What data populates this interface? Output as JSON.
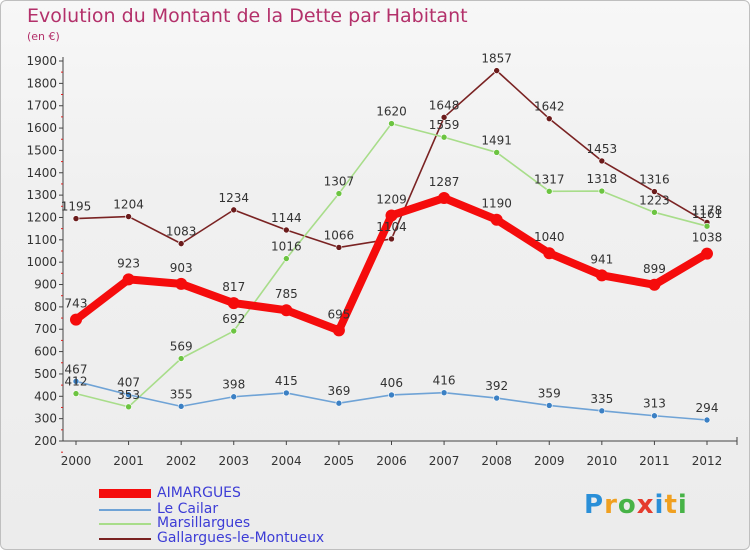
{
  "chart_data": {
    "type": "line",
    "title": "Evolution du Montant de la Dette par Habitant",
    "subtitle": "(en €)",
    "xlabel": "",
    "ylabel": "",
    "categories": [
      "2000",
      "2001",
      "2002",
      "2003",
      "2004",
      "2005",
      "2006",
      "2007",
      "2008",
      "2009",
      "2010",
      "2011",
      "2012"
    ],
    "ylim": [
      200,
      1900
    ],
    "yticks": [
      200,
      300,
      400,
      500,
      600,
      700,
      800,
      900,
      1000,
      1100,
      1200,
      1300,
      1400,
      1500,
      1600,
      1700,
      1800,
      1900
    ],
    "grid": false,
    "legend_position": "bottom-left",
    "series": [
      {
        "name": "Gallargues-le-Montueux",
        "color": "#7a2323",
        "marker": "#6b1b1b",
        "values": [
          1195,
          1204,
          1083,
          1234,
          1144,
          1066,
          1104,
          1648,
          1857,
          1642,
          1453,
          1316,
          1178
        ]
      },
      {
        "name": "Marsillargues",
        "color": "#a8dd8a",
        "marker": "#6cc441",
        "values": [
          412,
          353,
          569,
          692,
          1016,
          1307,
          1620,
          1559,
          1491,
          1317,
          1318,
          1223,
          1161
        ]
      },
      {
        "name": "Le Cailar",
        "color": "#6fa3d6",
        "marker": "#3b80c4",
        "values": [
          467,
          407,
          355,
          398,
          415,
          369,
          406,
          416,
          392,
          359,
          335,
          313,
          294
        ]
      },
      {
        "name": "AIMARGUES",
        "color": "#f50c0c",
        "marker": "#f50c0c",
        "values": [
          743,
          923,
          903,
          817,
          785,
          695,
          1209,
          1287,
          1190,
          1040,
          941,
          899,
          1038
        ]
      }
    ]
  },
  "legend": {
    "items": [
      {
        "label": "AIMARGUES",
        "color": "#f50c0c"
      },
      {
        "label": "Le Cailar",
        "color": "#6fa3d6"
      },
      {
        "label": "Marsillargues",
        "color": "#a8dd8a"
      },
      {
        "label": "Gallargues-le-Montueux",
        "color": "#7a2323"
      }
    ]
  },
  "brand": {
    "letters": [
      {
        "char": "P",
        "color": "#2a8fd8"
      },
      {
        "char": "r",
        "color": "#f0a020"
      },
      {
        "char": "o",
        "color": "#47b347"
      },
      {
        "char": "x",
        "color": "#e53c2e"
      },
      {
        "char": "i",
        "color": "#2a8fd8"
      },
      {
        "char": "t",
        "color": "#f0a020"
      },
      {
        "char": "i",
        "color": "#47b347"
      }
    ]
  }
}
